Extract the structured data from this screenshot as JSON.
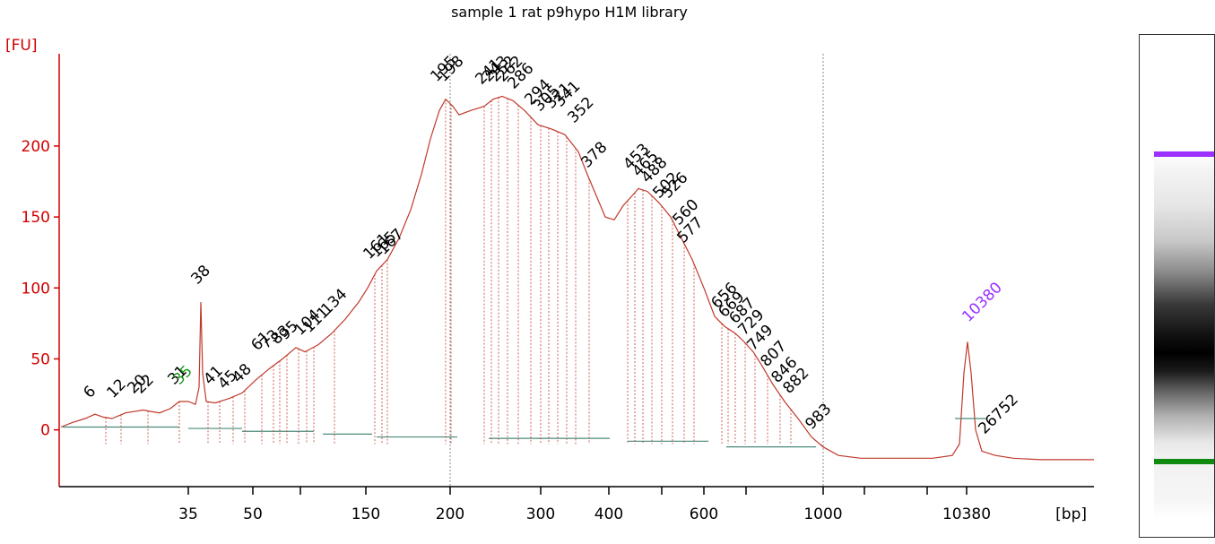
{
  "chart_data": {
    "type": "line",
    "title": "sample 1 rat p9hypo H1M library",
    "ylabel": "[FU]",
    "xlabel": "[bp]",
    "ylim": [
      -40,
      265
    ],
    "y_ticks": [
      0,
      50,
      100,
      150,
      200
    ],
    "x_ticks": [
      "35",
      "50",
      "150",
      "200",
      "300",
      "400",
      "600",
      "1000",
      "10380"
    ],
    "log_x": true,
    "colors": {
      "trace": "#c0392b",
      "axis": "#d00000",
      "baseline": "#4a8a7a",
      "ladder": "#9b30ff",
      "marker_low": "#1a9a1a"
    },
    "markers": [
      {
        "bp": 35,
        "label": "35",
        "type": "lower"
      },
      {
        "bp": 10380,
        "label": "10380",
        "type": "upper"
      }
    ],
    "peaks": [
      "6",
      "12",
      "20",
      "22",
      "31",
      "38",
      "41",
      "45",
      "48",
      "61",
      "73",
      "83",
      "95",
      "104",
      "111",
      "134",
      "161",
      "165",
      "167",
      "195",
      "198",
      "241",
      "243",
      "252",
      "262",
      "286",
      "294",
      "305",
      "321",
      "341",
      "352",
      "378",
      "453",
      "465",
      "488",
      "502",
      "526",
      "560",
      "577",
      "656",
      "669",
      "687",
      "729",
      "749",
      "807",
      "846",
      "882",
      "983",
      "26752"
    ],
    "gel": {
      "bands": "lanes",
      "upper_marker_color": "#9b30ff",
      "lower_marker_color": "#108a10"
    }
  }
}
